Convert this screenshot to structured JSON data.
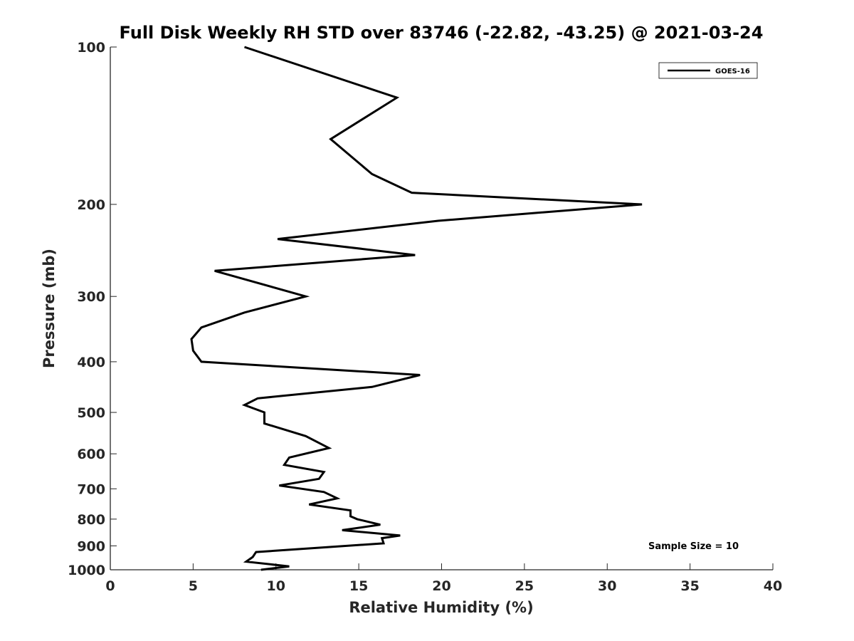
{
  "chart_data": {
    "type": "line",
    "title": "Full Disk Weekly RH STD over 83746 (-22.82, -43.25) @ 2021-03-24",
    "xlabel": "Relative Humidity (%)",
    "ylabel": "Pressure (mb)",
    "xlim": [
      0,
      40
    ],
    "ylim": [
      100,
      1000
    ],
    "y_scale": "log",
    "y_reversed": true,
    "grid": false,
    "xticks": [
      0,
      5,
      10,
      15,
      20,
      25,
      30,
      35,
      40
    ],
    "yticks": [
      100,
      200,
      300,
      400,
      500,
      600,
      700,
      800,
      900,
      1000
    ],
    "legend_position": "top-right",
    "series": [
      {
        "name": "GOES-16",
        "color": "#000000",
        "points": [
          [
            8.1,
            100
          ],
          [
            17.3,
            125
          ],
          [
            13.3,
            150
          ],
          [
            15.8,
            175
          ],
          [
            18.2,
            190
          ],
          [
            32.1,
            200
          ],
          [
            19.8,
            215
          ],
          [
            10.1,
            233
          ],
          [
            18.4,
            250
          ],
          [
            6.3,
            268
          ],
          [
            11.8,
            300
          ],
          [
            8.1,
            322
          ],
          [
            5.5,
            344
          ],
          [
            4.9,
            362
          ],
          [
            5.0,
            381
          ],
          [
            5.5,
            400
          ],
          [
            18.7,
            424
          ],
          [
            15.8,
            447
          ],
          [
            8.9,
            470
          ],
          [
            8.1,
            484
          ],
          [
            9.3,
            500
          ],
          [
            9.3,
            525
          ],
          [
            11.8,
            555
          ],
          [
            13.2,
            585
          ],
          [
            10.8,
            610
          ],
          [
            10.5,
            630
          ],
          [
            12.9,
            650
          ],
          [
            12.6,
            670
          ],
          [
            10.2,
            690
          ],
          [
            12.9,
            710
          ],
          [
            13.7,
            730
          ],
          [
            12.0,
            750
          ],
          [
            14.5,
            770
          ],
          [
            14.5,
            790
          ],
          [
            14.9,
            800
          ],
          [
            16.3,
            820
          ],
          [
            14.0,
            840
          ],
          [
            17.5,
            860
          ],
          [
            16.4,
            870
          ],
          [
            16.5,
            890
          ],
          [
            13.1,
            905
          ],
          [
            8.8,
            925
          ],
          [
            8.6,
            945
          ],
          [
            8.2,
            965
          ],
          [
            10.8,
            985
          ],
          [
            9.1,
            1000
          ]
        ]
      }
    ],
    "annotations": [
      "Sample Size = 10"
    ]
  }
}
